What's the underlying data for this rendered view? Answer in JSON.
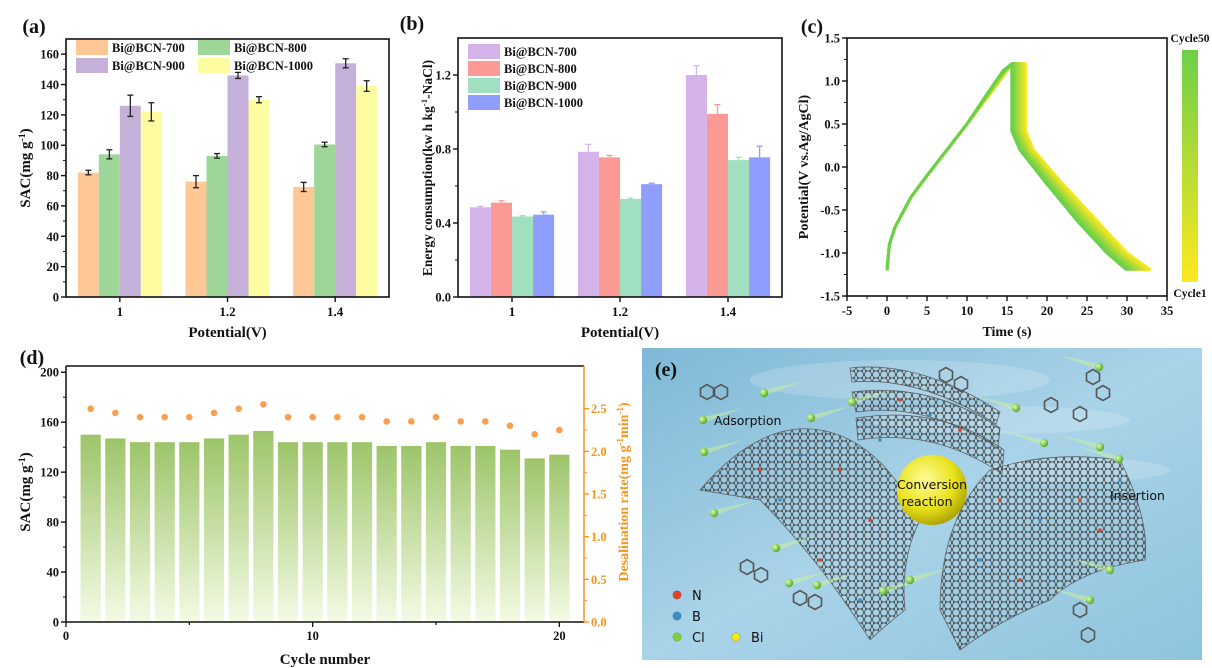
{
  "chart_data": [
    {
      "panel": "(a)",
      "type": "bar",
      "xlabel": "Potential(V)",
      "ylabel_parts": [
        "SAC(mg g",
        "-1",
        ")"
      ],
      "categories": [
        "1",
        "1.2",
        "1.4"
      ],
      "ylim": [
        0,
        170
      ],
      "yticks": [
        0,
        20,
        40,
        60,
        80,
        100,
        120,
        140,
        160
      ],
      "legend_columns": 2,
      "legend_placement": "top",
      "series": [
        {
          "name": "Bi@BCN-700",
          "color": "#fdc896",
          "values": [
            82,
            76,
            72.5
          ],
          "errors": [
            1.5,
            4,
            3
          ]
        },
        {
          "name": "Bi@BCN-800",
          "color": "#9ed69a",
          "values": [
            94,
            93,
            100.5
          ],
          "errors": [
            3,
            1.5,
            1.5
          ]
        },
        {
          "name": "Bi@BCN-900",
          "color": "#c4b0d8",
          "values": [
            126,
            146,
            154
          ],
          "errors": [
            7,
            2,
            3
          ]
        },
        {
          "name": "Bi@BCN-1000",
          "color": "#fdfca0",
          "values": [
            122,
            130,
            139
          ],
          "errors": [
            6,
            2,
            3.5
          ]
        }
      ]
    },
    {
      "panel": "(b)",
      "type": "bar",
      "xlabel": "Potential(V)",
      "ylabel_parts": [
        "Energy consumption(kw h kg",
        "-1",
        "-NaCl)"
      ],
      "categories": [
        "1",
        "1.2",
        "1.4"
      ],
      "ylim": [
        0,
        1.4
      ],
      "yticks": [
        0.0,
        0.4,
        0.8,
        1.2
      ],
      "ytick_labels": [
        "0.0",
        "0.4",
        "0.8",
        "1.2"
      ],
      "legend_columns": 1,
      "legend_placement": "top-left",
      "series": [
        {
          "name": "Bi@BCN-700",
          "color": "#d4b3ea",
          "values": [
            0.485,
            0.785,
            1.2
          ],
          "errors": [
            0.005,
            0.04,
            0.05
          ]
        },
        {
          "name": "Bi@BCN-800",
          "color": "#fb9a94",
          "values": [
            0.51,
            0.755,
            0.99
          ],
          "errors": [
            0.01,
            0.01,
            0.05
          ]
        },
        {
          "name": "Bi@BCN-900",
          "color": "#a0e0c0",
          "values": [
            0.435,
            0.53,
            0.74
          ],
          "errors": [
            0.005,
            0.005,
            0.015
          ]
        },
        {
          "name": "Bi@BCN-1000",
          "color": "#8f9efc",
          "values": [
            0.445,
            0.61,
            0.755
          ],
          "errors": [
            0.015,
            0.005,
            0.06
          ]
        }
      ]
    },
    {
      "panel": "(c)",
      "type": "line",
      "xlabel": "Time (s)",
      "ylabel": "Potential(V vs.Ag/AgCl)",
      "xlim": [
        -5,
        35
      ],
      "ylim": [
        -1.5,
        1.5
      ],
      "xticks": [
        -5,
        0,
        5,
        10,
        15,
        20,
        25,
        30,
        35
      ],
      "yticks": [
        -1.5,
        -1.0,
        -0.5,
        0.0,
        0.5,
        1.0,
        1.5
      ],
      "ytick_labels": [
        "-1.5",
        "-1.0",
        "-0.5",
        "0.0",
        "0.5",
        "1.0",
        "1.5"
      ],
      "colorbar": {
        "top_label": "Cycle50",
        "bottom_label": "Cycle1",
        "top_color": "#6cd04a",
        "bottom_color": "#ffe81f"
      },
      "series": [
        {
          "name": "Cycle1",
          "color": "#ffe81f",
          "x": [
            0,
            0.3,
            1,
            3,
            5,
            7.5,
            10,
            12.5,
            14.5,
            15.6,
            17.3,
            17.3,
            18.3,
            22,
            26,
            30,
            33
          ],
          "y": [
            -1.2,
            -0.9,
            -0.7,
            -0.35,
            -0.1,
            0.2,
            0.5,
            0.8,
            1.05,
            1.2,
            1.2,
            0.42,
            0.2,
            -0.2,
            -0.6,
            -1.0,
            -1.2
          ]
        },
        {
          "name": "Cycle50",
          "color": "#6cd04a",
          "x": [
            0,
            0.3,
            1,
            3,
            5,
            7.5,
            10,
            12.5,
            14.5,
            15.6,
            15.6,
            15.6,
            16.6,
            20,
            24,
            27.5,
            30
          ],
          "y": [
            -1.2,
            -0.9,
            -0.7,
            -0.35,
            -0.1,
            0.2,
            0.5,
            0.85,
            1.12,
            1.2,
            1.2,
            0.42,
            0.2,
            -0.2,
            -0.65,
            -1.0,
            -1.2
          ]
        }
      ]
    },
    {
      "panel": "(d)",
      "type": "bar",
      "xlabel": "Cycle number",
      "ylabel_parts": [
        "SAC(mg g",
        "-1",
        ")"
      ],
      "y2label_parts": [
        "Desalination rate(mg g",
        "-1",
        "min",
        "-1",
        ")"
      ],
      "xlim": [
        0,
        21
      ],
      "xticks": [
        0,
        10,
        20
      ],
      "ylim": [
        0,
        205
      ],
      "yticks": [
        0,
        40,
        80,
        120,
        160,
        200
      ],
      "y2lim": [
        0,
        3.0
      ],
      "y2ticks": [
        0.0,
        0.5,
        1.0,
        1.5,
        2.0,
        2.5
      ],
      "y2tick_labels": [
        "0.0",
        "0.5",
        "1.0",
        "1.5",
        "2.0",
        "2.5"
      ],
      "bar_color_top": "#9dc46a",
      "bar_color_bottom": "#f3fbe4",
      "axis2_color": "#f7941d",
      "point_color": "#f9a050",
      "x": [
        1,
        2,
        3,
        4,
        5,
        6,
        7,
        8,
        9,
        10,
        11,
        12,
        13,
        14,
        15,
        16,
        17,
        18,
        19,
        20
      ],
      "series": [
        {
          "axis": "left",
          "kind": "bar",
          "values": [
            150,
            147,
            144,
            144,
            144,
            147,
            150,
            153,
            144,
            144,
            144,
            144,
            141,
            141,
            144,
            141,
            141,
            138,
            131,
            134
          ]
        },
        {
          "axis": "right",
          "kind": "scatter",
          "values": [
            2.5,
            2.45,
            2.4,
            2.4,
            2.4,
            2.45,
            2.5,
            2.55,
            2.4,
            2.4,
            2.4,
            2.4,
            2.35,
            2.35,
            2.4,
            2.35,
            2.35,
            2.3,
            2.2,
            2.25
          ]
        }
      ]
    }
  ],
  "illustration": {
    "panel": "(e)",
    "labels": {
      "adsorption": "Adsorption",
      "conversion_1": "Conversion",
      "conversion_2": "reaction",
      "insertion": "Insertion"
    },
    "legend": [
      {
        "symbol": "N",
        "color": "#e0402a"
      },
      {
        "symbol": "B",
        "color": "#3b8fc4"
      },
      {
        "symbol": "Cl",
        "color": "#7fcf3a"
      },
      {
        "symbol": "Bi",
        "color": "#f2e81a"
      }
    ]
  }
}
